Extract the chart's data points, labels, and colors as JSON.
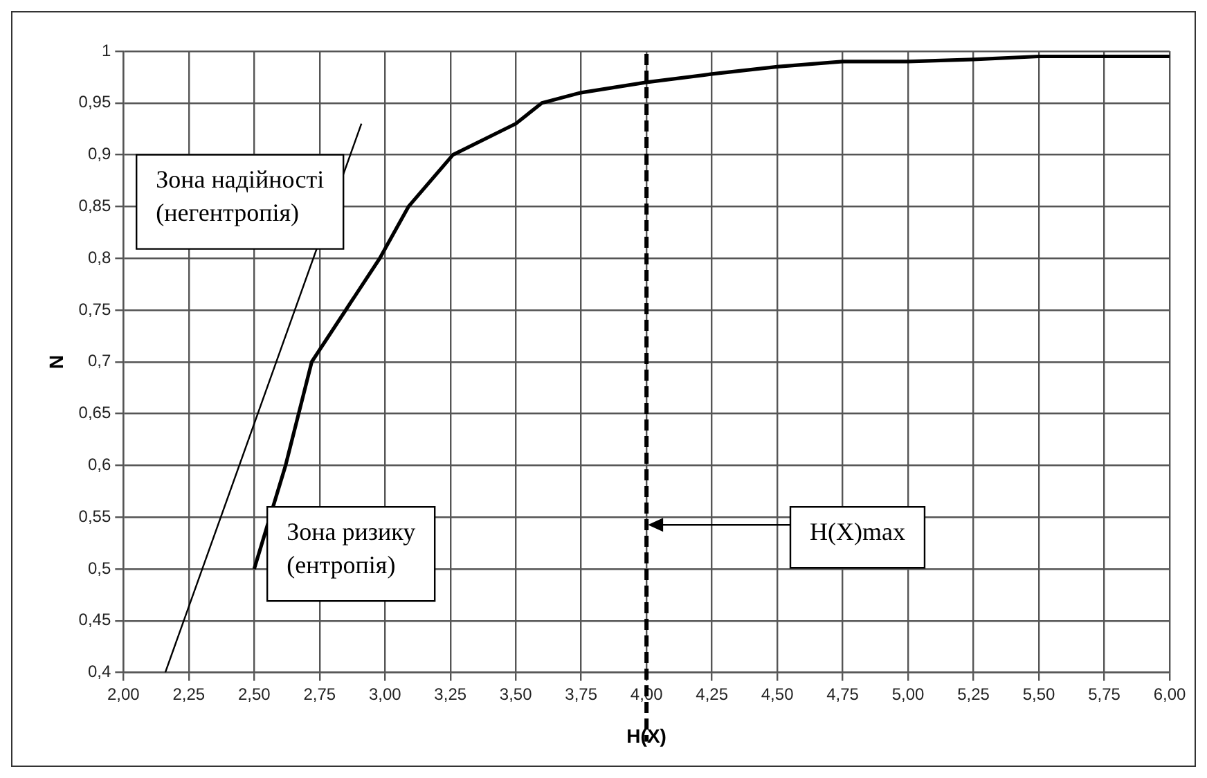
{
  "chart_data": {
    "type": "line",
    "xlabel": "H(X)",
    "ylabel": "N",
    "xlim": [
      2,
      6
    ],
    "ylim": [
      0.4,
      1
    ],
    "xticks": [
      {
        "value": 2,
        "label": "2,00"
      },
      {
        "value": 2.25,
        "label": "2,25"
      },
      {
        "value": 2.5,
        "label": "2,50"
      },
      {
        "value": 2.75,
        "label": "2,75"
      },
      {
        "value": 3,
        "label": "3,00"
      },
      {
        "value": 3.25,
        "label": "3,25"
      },
      {
        "value": 3.5,
        "label": "3,50"
      },
      {
        "value": 3.75,
        "label": "3,75"
      },
      {
        "value": 4,
        "label": "4,00"
      },
      {
        "value": 4.25,
        "label": "4,25"
      },
      {
        "value": 4.5,
        "label": "4,50"
      },
      {
        "value": 4.75,
        "label": "4,75"
      },
      {
        "value": 5,
        "label": "5,00"
      },
      {
        "value": 5.25,
        "label": "5,25"
      },
      {
        "value": 5.5,
        "label": "5,50"
      },
      {
        "value": 5.75,
        "label": "5,75"
      },
      {
        "value": 6,
        "label": "6,00"
      }
    ],
    "yticks": [
      {
        "value": 0.4,
        "label": "0,4"
      },
      {
        "value": 0.45,
        "label": "0,45"
      },
      {
        "value": 0.5,
        "label": "0,5"
      },
      {
        "value": 0.55,
        "label": "0,55"
      },
      {
        "value": 0.6,
        "label": "0,6"
      },
      {
        "value": 0.65,
        "label": "0,65"
      },
      {
        "value": 0.7,
        "label": "0,7"
      },
      {
        "value": 0.75,
        "label": "0,75"
      },
      {
        "value": 0.8,
        "label": "0,8"
      },
      {
        "value": 0.85,
        "label": "0,85"
      },
      {
        "value": 0.9,
        "label": "0,9"
      },
      {
        "value": 0.95,
        "label": "0,95"
      },
      1
    ],
    "grid": true,
    "legend": false,
    "marker": "none",
    "line_style": "solid",
    "series": [
      {
        "color": "#000000",
        "x": [
          2.5,
          2.62,
          2.72,
          2.85,
          2.98,
          3.09,
          3.26,
          3.5,
          3.6,
          3.75,
          4,
          4.25,
          4.5,
          4.75,
          5,
          5.25,
          5.5,
          5.75,
          6
        ],
        "values": [
          0.5,
          0.6,
          0.7,
          0.75,
          0.8,
          0.85,
          0.9,
          0.93,
          0.95,
          0.96,
          0.97,
          0.978,
          0.985,
          0.99,
          0.99,
          0.992,
          0.995,
          0.995,
          0.995
        ]
      },
      {
        "color": "#000000",
        "x": [
          2.16,
          2.91
        ],
        "values": [
          0.4,
          0.93
        ]
      }
    ],
    "ref_lines": [
      {
        "axis": "x",
        "value": 4,
        "label": "H(X)max",
        "color": "#000000",
        "line_style": "dashed"
      }
    ],
    "annotations": [
      "Зона надійності\n(негентропія)",
      "Зона ризику\n(ентропія)"
    ]
  }
}
